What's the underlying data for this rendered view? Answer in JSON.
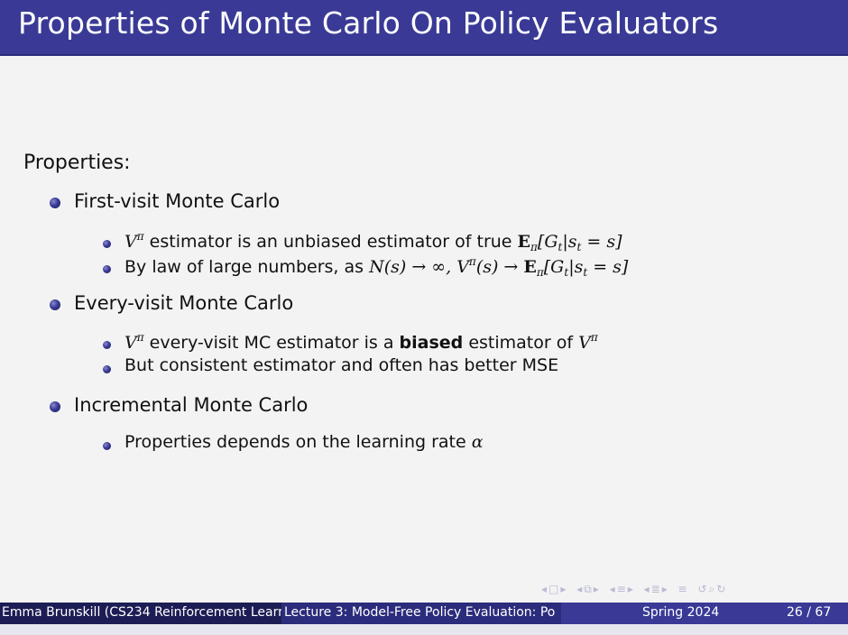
{
  "slide": {
    "title": "Properties of Monte Carlo On Policy Evaluators",
    "heading": "Properties:",
    "first_visit": {
      "label": "First-visit Monte Carlo",
      "sub1": {
        "v": "V",
        "pi": "π",
        "text": " estimator is an unbiased estimator of true ",
        "E": "E",
        "E_sub": "π",
        "expr": "[G",
        "t1": "t",
        "bar": "|s",
        "t2": "t",
        "end": " = s]"
      },
      "sub2": {
        "text": "By law of large numbers, as ",
        "N": "N",
        "arg": "(s) → ∞, ",
        "v": "V",
        "pi": "π",
        "arg2": "(s) → ",
        "E": "E",
        "E_sub": "π",
        "expr": "[G",
        "t1": "t",
        "bar": "|s",
        "t2": "t",
        "end": " = s]"
      }
    },
    "every_visit": {
      "label": "Every-visit Monte Carlo",
      "sub1": {
        "v": "V",
        "pi": "π",
        "text_a": " every-visit MC estimator is a ",
        "bold": "biased",
        "text_b": " estimator of ",
        "v2": "V",
        "pi2": "π"
      },
      "sub2": "But consistent estimator and often has better MSE"
    },
    "incremental": {
      "label": "Incremental Monte Carlo",
      "sub1": {
        "text": "Properties depends on the learning rate ",
        "alpha": "α"
      }
    }
  },
  "footer": {
    "author": "Emma Brunskill (CS234 Reinforcement Learn",
    "lecture": "Lecture 3: Model-Free Policy Evaluation: Po",
    "term": "Spring 2024",
    "page": "26 / 67"
  },
  "nav_icons": [
    "nav-first-icon",
    "nav-frame-icon",
    "nav-subsection-icon",
    "nav-section-icon",
    "nav-align-icon",
    "nav-search-icon"
  ],
  "colors": {
    "title_bar": "#3a3a96",
    "footer_left": "#1d1d55",
    "footer_mid": "#2c2c7c",
    "footer_right": "#3a3a96",
    "background": "#f3f3f3"
  }
}
